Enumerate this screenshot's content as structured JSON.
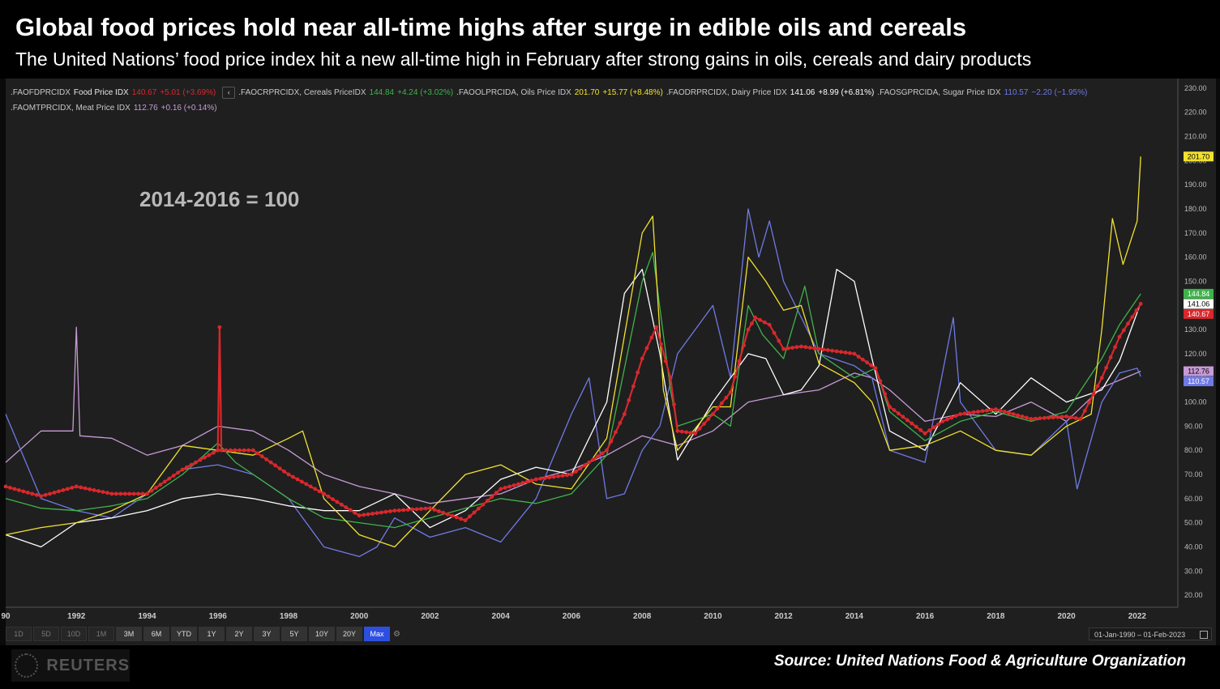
{
  "header": {
    "title": "Global food prices hold near all-time highs after surge in edible oils and cereals",
    "subtitle": "The United Nations’ food price index hit a new all-time high in February after strong gains in oils, cereals and dairy products"
  },
  "legend": [
    {
      "code": ".FAOFDPRCIDX",
      "name": "Food Price IDX",
      "value": "140.67",
      "change": "+5.01 (+3.69%)",
      "color": "#d8282c"
    },
    {
      "code": ".FAOCRPRCIDX, Cereals PriceIDX",
      "name": "",
      "value": "144.84",
      "change": "+4.24 (+3.02%)",
      "color": "#3fb34a"
    },
    {
      "code": ".FAOOLPRCIDA, Oils Price IDX",
      "name": "",
      "value": "201.70",
      "change": "+15.77 (+8.48%)",
      "color": "#f2e22f"
    },
    {
      "code": ".FAODRPRCIDX, Dairy Price IDX",
      "name": "",
      "value": "141.06",
      "change": "+8.99 (+6.81%)",
      "color": "#ffffff"
    },
    {
      "code": ".FAOSGPRCIDA, Sugar Price IDX",
      "name": "",
      "value": "110.57",
      "change": "−2.20 (−1.95%)",
      "color": "#6f7ae6"
    },
    {
      "code": ".FAOMTPRCIDX, Meat Price IDX",
      "name": "",
      "value": "112.76",
      "change": "+0.16 (+0.14%)",
      "color": "#c79bd6"
    }
  ],
  "legend_back_icon": "chevron-left-icon",
  "base_note": "2014-2016 = 100",
  "toolbar": {
    "ranges": [
      "1D",
      "5D",
      "10D",
      "1M",
      "3M",
      "6M",
      "YTD",
      "1Y",
      "2Y",
      "3Y",
      "5Y",
      "10Y",
      "20Y",
      "Max"
    ],
    "enabled_from": 4,
    "active": "Max",
    "settings_icon": "gear-icon"
  },
  "date_range": "01-Jan-1990  –  01-Feb-2023",
  "date_range_icon": "calendar-icon",
  "footer": {
    "brand": "REUTERS",
    "source": "Source: United Nations Food & Agriculture Organization"
  },
  "chart_data": {
    "type": "line",
    "title": "Global food prices hold near all-time highs after surge in edible oils and cereals",
    "xlabel": "",
    "ylabel": "",
    "x_ticks": [
      "90",
      "1992",
      "1994",
      "1996",
      "1998",
      "2000",
      "2002",
      "2004",
      "2006",
      "2008",
      "2010",
      "2012",
      "2014",
      "2016",
      "2018",
      "2020",
      "2022"
    ],
    "y_ticks": [
      "20.00",
      "30.00",
      "40.00",
      "50.00",
      "60.00",
      "70.00",
      "80.00",
      "90.00",
      "100.00",
      "110.00",
      "120.00",
      "130.00",
      "140.00",
      "150.00",
      "160.00",
      "170.00",
      "180.00",
      "190.00",
      "200.00",
      "210.00",
      "220.00",
      "230.00"
    ],
    "ylim": [
      15,
      234
    ],
    "xlim": [
      1990.0,
      2023.15
    ],
    "grid": false,
    "last_value_labels": [
      "201.70",
      "144.84",
      "141.06",
      "140.67",
      "112.76",
      "110.57"
    ],
    "series": [
      {
        "name": "Food Price IDX",
        "color": "#d8282c",
        "x": [
          1990,
          1991,
          1992,
          1993,
          1994,
          1995,
          1996,
          1996.05,
          1996.1,
          1997,
          1998,
          1999,
          2000,
          2001,
          2002,
          2003,
          2004,
          2005,
          2006,
          2007,
          2007.5,
          2008,
          2008.4,
          2008.8,
          2009,
          2009.5,
          2010,
          2010.5,
          2011,
          2011.2,
          2011.6,
          2012,
          2012.5,
          2013,
          2014,
          2014.6,
          2015,
          2016,
          2016.5,
          2017,
          2018,
          2019,
          2020,
          2020.4,
          2021,
          2021.5,
          2022.1
        ],
        "values": [
          65,
          61,
          65,
          62,
          62,
          72,
          80,
          131,
          80,
          80,
          70,
          62,
          53,
          55,
          56,
          51,
          64,
          68,
          70,
          80,
          95,
          118,
          131,
          110,
          88,
          87,
          95,
          104,
          130,
          135,
          132,
          122,
          123,
          122,
          120,
          114,
          98,
          87,
          92,
          95,
          97,
          93,
          94,
          93,
          110,
          127,
          140.67
        ]
      },
      {
        "name": "Cereals PriceIDX",
        "color": "#3fb34a",
        "x": [
          1990,
          1991,
          1992,
          1993,
          1994,
          1995,
          1996,
          1996.5,
          1997,
          1998,
          1999,
          2000,
          2001,
          2002,
          2003,
          2004,
          2005,
          2006,
          2007,
          2008,
          2008.3,
          2008.8,
          2009,
          2010,
          2010.5,
          2011,
          2011.4,
          2012,
          2012.6,
          2013,
          2014,
          2014.6,
          2015,
          2016,
          2017,
          2018,
          2019,
          2020,
          2021,
          2021.5,
          2022.1
        ],
        "values": [
          60,
          56,
          55,
          57,
          60,
          70,
          83,
          75,
          70,
          60,
          52,
          50,
          48,
          52,
          56,
          60,
          58,
          62,
          78,
          150,
          162,
          105,
          90,
          95,
          90,
          140,
          128,
          118,
          148,
          120,
          110,
          114,
          96,
          84,
          92,
          96,
          92,
          96,
          118,
          132,
          144.84
        ]
      },
      {
        "name": "Oils Price IDX",
        "color": "#f2e22f",
        "x": [
          1990,
          1991,
          1992,
          1993,
          1994,
          1995,
          1996,
          1997,
          1998,
          1998.4,
          1999,
          2000,
          2001,
          2002,
          2003,
          2004,
          2005,
          2006,
          2007,
          2008,
          2008.3,
          2008.6,
          2009,
          2010,
          2010.5,
          2011,
          2011.5,
          2012,
          2012.5,
          2013,
          2014,
          2014.5,
          2015,
          2016,
          2017,
          2018,
          2019,
          2020,
          2020.7,
          2021,
          2021.3,
          2021.6,
          2022,
          2022.1
        ],
        "values": [
          45,
          48,
          50,
          55,
          62,
          82,
          80,
          78,
          85,
          88,
          60,
          45,
          40,
          55,
          70,
          74,
          66,
          64,
          85,
          170,
          177,
          105,
          80,
          98,
          98,
          160,
          150,
          138,
          140,
          116,
          108,
          100,
          80,
          82,
          88,
          80,
          78,
          90,
          95,
          130,
          176,
          157,
          175,
          201.7
        ]
      },
      {
        "name": "Dairy Price IDX",
        "color": "#ffffff",
        "x": [
          1990,
          1991,
          1992,
          1993,
          1994,
          1995,
          1996,
          1997,
          1998,
          1999,
          2000,
          2001,
          2002,
          2003,
          2004,
          2005,
          2006,
          2007,
          2007.5,
          2008,
          2008.5,
          2009,
          2010,
          2011,
          2011.5,
          2012,
          2012.5,
          2013,
          2013.5,
          2014,
          2014.5,
          2015,
          2016,
          2017,
          2018,
          2019,
          2020,
          2021,
          2021.5,
          2022.1
        ],
        "values": [
          45,
          40,
          50,
          52,
          55,
          60,
          62,
          60,
          57,
          55,
          55,
          62,
          48,
          55,
          68,
          73,
          70,
          100,
          145,
          155,
          120,
          76,
          100,
          120,
          118,
          103,
          105,
          115,
          155,
          150,
          118,
          88,
          80,
          108,
          95,
          110,
          100,
          105,
          117,
          141.06
        ]
      },
      {
        "name": "Sugar Price IDX",
        "color": "#6f7ae6",
        "x": [
          1990,
          1991,
          1992,
          1993,
          1994,
          1995,
          1996,
          1997,
          1998,
          1999,
          2000,
          2000.5,
          2001,
          2002,
          2003,
          2004,
          2005,
          2006,
          2006.5,
          2007,
          2007.5,
          2008,
          2008.5,
          2009,
          2009.5,
          2010,
          2010.5,
          2011,
          2011.3,
          2011.6,
          2012,
          2013,
          2014,
          2014.5,
          2015,
          2016,
          2016.8,
          2017,
          2018,
          2019,
          2020,
          2020.3,
          2021,
          2021.5,
          2022,
          2022.1
        ],
        "values": [
          95,
          60,
          55,
          52,
          62,
          72,
          74,
          70,
          60,
          40,
          36,
          40,
          52,
          44,
          48,
          42,
          60,
          95,
          110,
          60,
          62,
          80,
          90,
          120,
          130,
          140,
          110,
          180,
          160,
          175,
          150,
          120,
          115,
          110,
          80,
          75,
          135,
          100,
          80,
          78,
          92,
          64,
          100,
          112,
          114,
          110.57
        ]
      },
      {
        "name": "Meat Price IDX",
        "color": "#c79bd6",
        "x": [
          1990,
          1991,
          1991.9,
          1992,
          1992.1,
          1993,
          1994,
          1995,
          1996,
          1997,
          1998,
          1999,
          2000,
          2001,
          2002,
          2003,
          2004,
          2005,
          2006,
          2007,
          2008,
          2009,
          2010,
          2011,
          2012,
          2013,
          2014,
          2014.5,
          2015,
          2016,
          2017,
          2018,
          2019,
          2020,
          2021,
          2022.1
        ],
        "values": [
          75,
          88,
          88,
          131,
          86,
          85,
          78,
          82,
          90,
          88,
          80,
          70,
          65,
          62,
          58,
          60,
          62,
          68,
          72,
          78,
          86,
          82,
          88,
          100,
          103,
          105,
          112,
          110,
          105,
          92,
          95,
          94,
          100,
          92,
          106,
          112.76
        ]
      }
    ]
  }
}
